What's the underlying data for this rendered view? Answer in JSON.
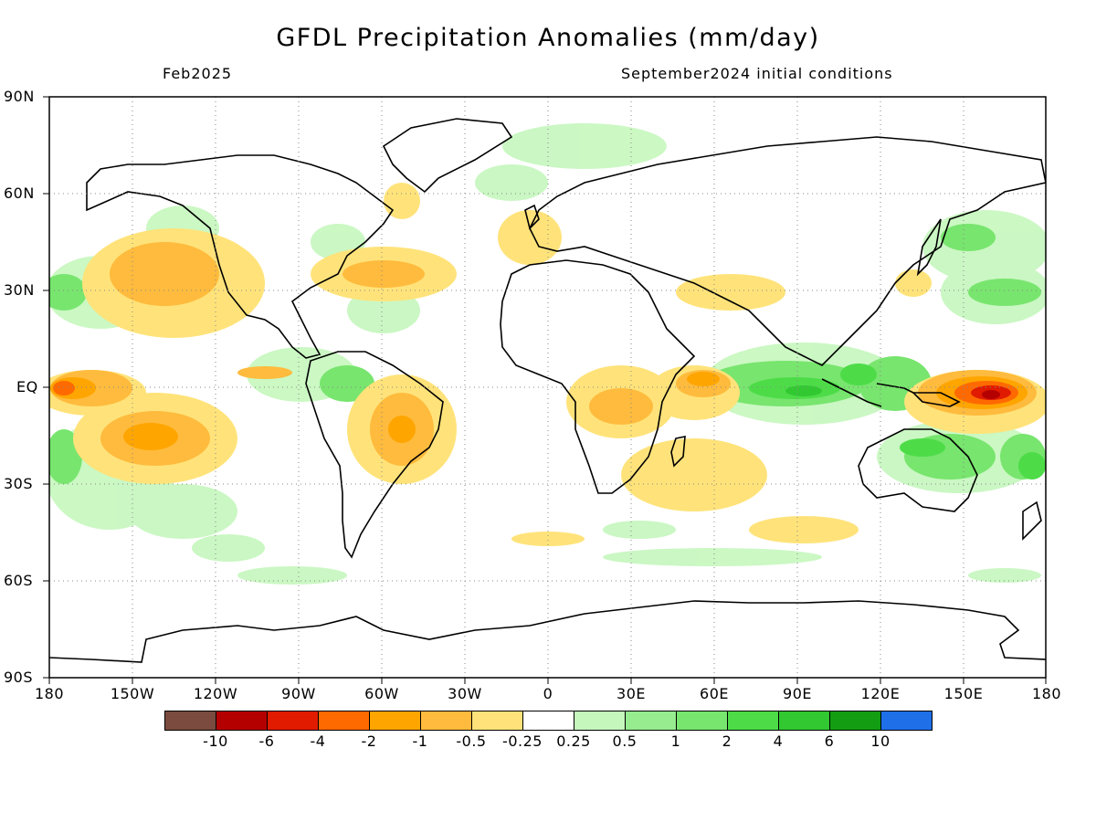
{
  "title": "GFDL Precipitation Anomalies (mm/day)",
  "subtitle_left": "Feb2025",
  "subtitle_right": "September2024 initial conditions",
  "lat_labels": [
    "90N",
    "60N",
    "30N",
    "EQ",
    "30S",
    "60S",
    "90S"
  ],
  "lon_labels": [
    "180",
    "150W",
    "120W",
    "90W",
    "60W",
    "30W",
    "0",
    "30E",
    "60E",
    "90E",
    "120E",
    "150E",
    "180"
  ],
  "colorbar": {
    "colors": [
      "#7a4b3e",
      "#b50000",
      "#e01b00",
      "#ff6a00",
      "#ffa500",
      "#ffbb3d",
      "#ffe37a",
      "#ffffff",
      "#c5f7bd",
      "#96ec8f",
      "#78e56e",
      "#4ddc48",
      "#32c832",
      "#139d13",
      "#1f6fe8"
    ],
    "labels": [
      "-10",
      "-6",
      "-4",
      "-2",
      "-1",
      "-0.5",
      "-0.25",
      "0.25",
      "0.5",
      "1",
      "2",
      "4",
      "6",
      "10"
    ]
  }
}
